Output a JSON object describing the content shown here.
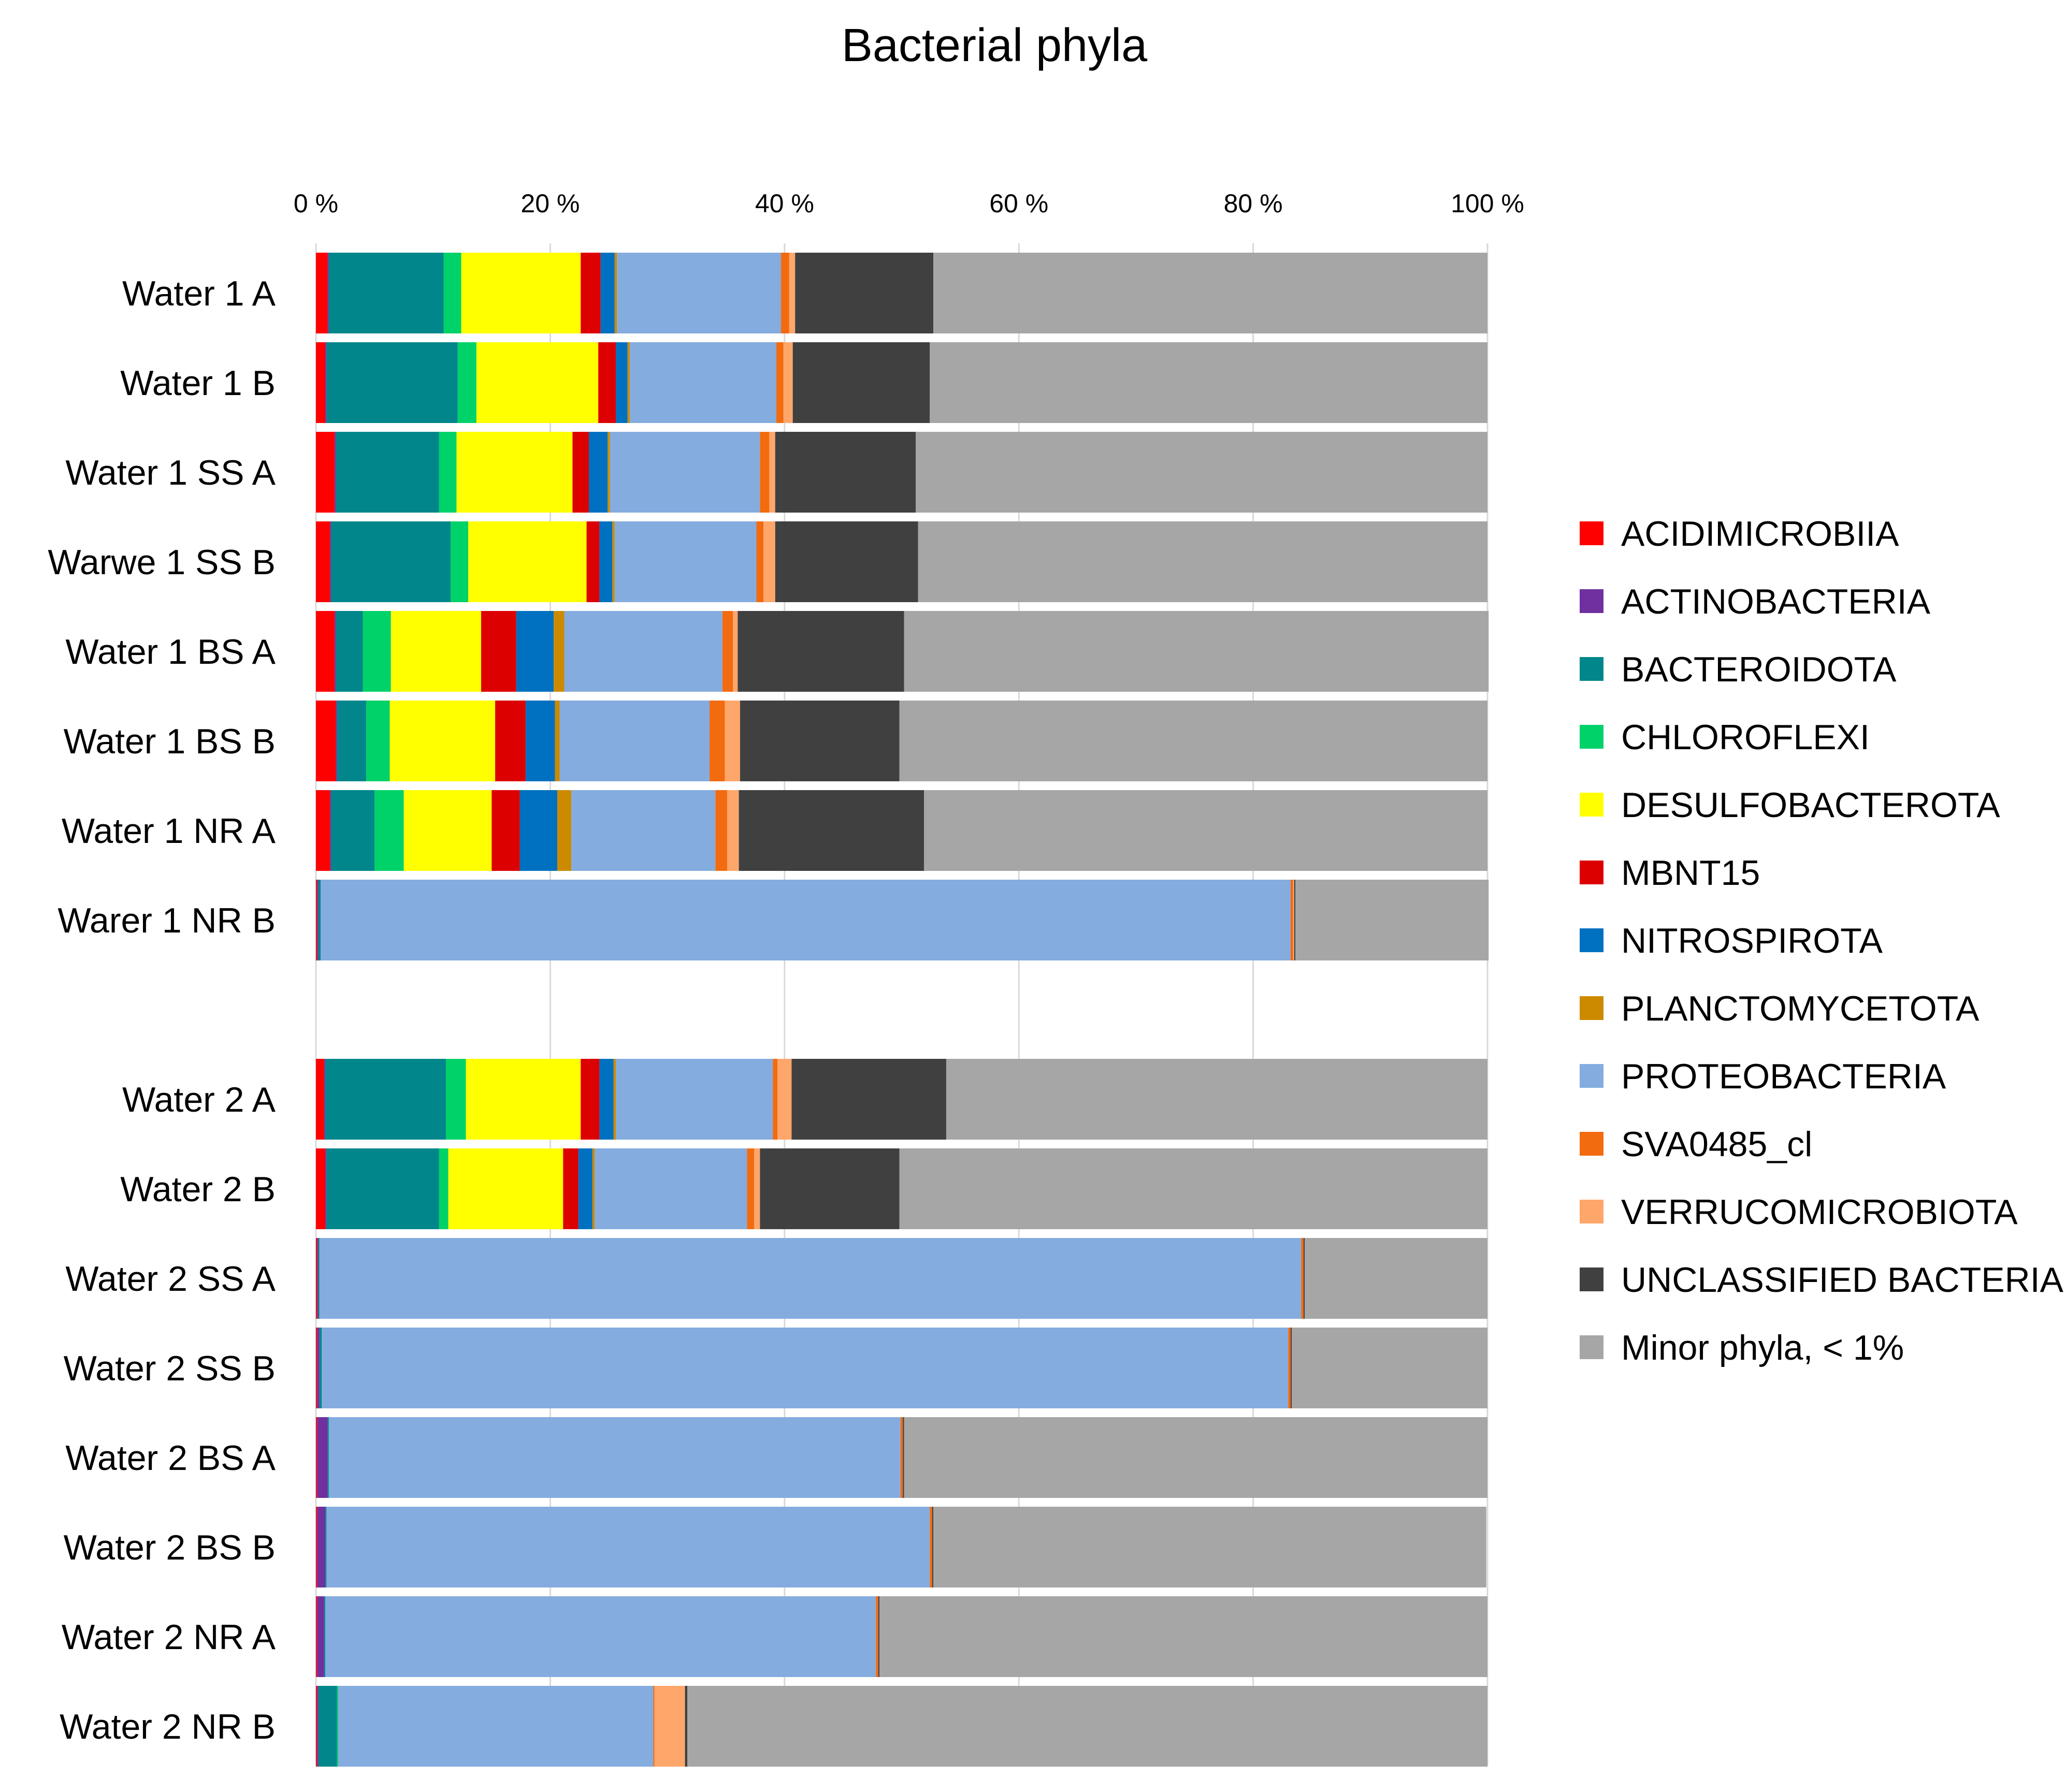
{
  "chart_data": {
    "type": "bar",
    "orientation": "horizontal",
    "stacked": "percent",
    "title": "Bacterial phyla",
    "xlabel": "",
    "ylabel": "",
    "xlim": [
      0,
      100
    ],
    "xticks": [
      "0 %",
      "20 %",
      "40 %",
      "60 %",
      "80 %",
      "100 %"
    ],
    "grid": "vertical",
    "legend_position": "right",
    "categories": [
      "Water 1 A",
      "Water 1 B",
      "Water 1 SS A",
      "Warwe 1 SS B",
      "Water 1 BS A",
      "Water 1 BS B",
      "Water 1 NR A",
      "Warer 1 NR B",
      "Water 2 A",
      "Water 2 B",
      "Water 2 SS A",
      "Water 2 SS B",
      "Water 2 BS A",
      "Water 2 BS B",
      "Water 2 NR A",
      "Water 2 NR B"
    ],
    "series": [
      {
        "name": "ACIDIMICROBIIA",
        "color": "#FF0000",
        "values": [
          1.0,
          0.8,
          1.6,
          1.2,
          1.6,
          1.7,
          1.2,
          0.1,
          0.7,
          0.8,
          0.1,
          0.1,
          0.1,
          0.1,
          0.1,
          0.1
        ]
      },
      {
        "name": "ACTINOBACTERIA",
        "color": "#7030A0",
        "values": [
          0.1,
          0.1,
          0.1,
          0.1,
          0.1,
          0.1,
          0.1,
          0.1,
          0.1,
          0.1,
          0.1,
          0.2,
          0.9,
          0.7,
          0.6,
          0.1
        ]
      },
      {
        "name": "BACTEROIDOTA",
        "color": "#00868B",
        "values": [
          9.8,
          11.2,
          8.8,
          10.2,
          2.3,
          2.5,
          3.7,
          0.2,
          10.3,
          9.6,
          0.1,
          0.2,
          0.1,
          0.1,
          0.1,
          1.6
        ]
      },
      {
        "name": "CHLOROFLEXI",
        "color": "#00D26A",
        "values": [
          1.5,
          1.6,
          1.5,
          1.5,
          2.4,
          2.0,
          2.5,
          0.0,
          1.7,
          0.8,
          0.0,
          0.0,
          0.0,
          0.0,
          0.0,
          0.1
        ]
      },
      {
        "name": "DESULFOBACTEROTA",
        "color": "#FFFF00",
        "values": [
          10.2,
          10.4,
          9.9,
          10.1,
          7.7,
          9.0,
          7.5,
          0.0,
          9.8,
          9.8,
          0.0,
          0.0,
          0.0,
          0.0,
          0.0,
          0.0
        ]
      },
      {
        "name": "MBNT15",
        "color": "#DD0000",
        "values": [
          1.7,
          1.5,
          1.4,
          1.1,
          3.0,
          2.6,
          2.4,
          0.0,
          1.6,
          1.3,
          0.0,
          0.0,
          0.0,
          0.0,
          0.0,
          0.0
        ]
      },
      {
        "name": "NITROSPIROTA",
        "color": "#0070C0",
        "values": [
          1.2,
          1.0,
          1.6,
          1.1,
          3.2,
          2.5,
          3.2,
          0.0,
          1.2,
          1.2,
          0.0,
          0.0,
          0.0,
          0.0,
          0.0,
          0.0
        ]
      },
      {
        "name": "PLANCTOMYCETOTA",
        "color": "#CC8A00",
        "values": [
          0.2,
          0.2,
          0.2,
          0.2,
          0.9,
          0.4,
          1.2,
          0.0,
          0.2,
          0.2,
          0.0,
          0.0,
          0.0,
          0.0,
          0.0,
          0.0
        ]
      },
      {
        "name": "PROTEOBACTERIA",
        "color": "#84ACDF",
        "values": [
          14.0,
          12.5,
          12.8,
          12.1,
          13.5,
          12.8,
          12.3,
          82.8,
          13.4,
          13.0,
          83.8,
          82.5,
          48.8,
          51.5,
          47.0,
          26.9
        ]
      },
      {
        "name": "SVA0485_cl",
        "color": "#F26B0F",
        "values": [
          0.7,
          0.6,
          0.8,
          0.6,
          0.9,
          1.3,
          1.0,
          0.2,
          0.4,
          0.6,
          0.2,
          0.2,
          0.2,
          0.2,
          0.2,
          0.1
        ]
      },
      {
        "name": "VERRUCOMICROBIOTA",
        "color": "#FFA66B",
        "values": [
          0.5,
          0.8,
          0.5,
          1.0,
          0.4,
          1.3,
          1.0,
          0.1,
          1.2,
          0.5,
          0.0,
          0.0,
          0.0,
          0.0,
          0.0,
          2.6
        ]
      },
      {
        "name": "UNCLASSIFIED BACTERIA",
        "color": "#404040",
        "values": [
          11.8,
          11.7,
          12.0,
          12.2,
          14.2,
          13.6,
          15.8,
          0.1,
          13.2,
          11.9,
          0.1,
          0.1,
          0.1,
          0.1,
          0.1,
          0.2
        ]
      },
      {
        "name": "Minor phyla, < 1%",
        "color": "#A6A6A6",
        "values": [
          47.3,
          47.6,
          48.8,
          48.6,
          49.9,
          50.2,
          48.1,
          16.5,
          46.2,
          50.2,
          15.6,
          16.7,
          49.8,
          47.2,
          51.9,
          68.3
        ]
      }
    ]
  }
}
